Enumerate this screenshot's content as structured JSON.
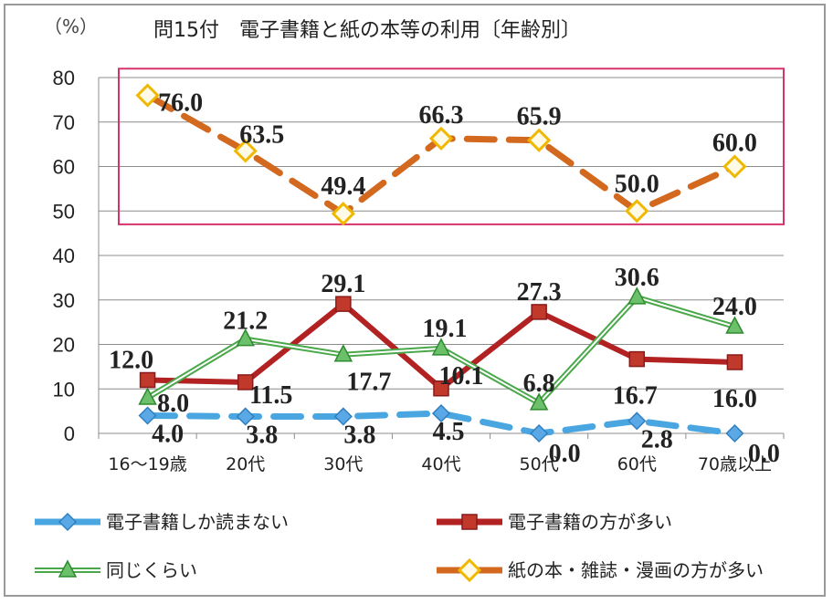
{
  "chart_data": {
    "type": "line",
    "title": "問15付　電子書籍と紙の本等の利用〔年齢別〕",
    "unit_label": "（%）",
    "categories": [
      "16〜19歳",
      "20代",
      "30代",
      "40代",
      "50代",
      "60代",
      "70歳以上"
    ],
    "ylim": [
      0,
      80
    ],
    "yticks": [
      "0",
      "10",
      "20",
      "30",
      "40",
      "50",
      "60",
      "70",
      "80"
    ],
    "grid": true,
    "legend_position": "bottom",
    "series": [
      {
        "name": "電子書籍しか読まない",
        "values": [
          4.0,
          3.8,
          3.8,
          4.5,
          0.0,
          2.8,
          0.0
        ],
        "labels": [
          "4.0",
          "3.8",
          "3.8",
          "4.5",
          "0.0",
          "2.8",
          "0.0"
        ],
        "color": "#4aa6e0",
        "marker": "diamond-blue",
        "line_style": "dashed"
      },
      {
        "name": "電子書籍の方が多い",
        "values": [
          12.0,
          11.5,
          29.1,
          10.1,
          27.3,
          16.7,
          16.0
        ],
        "labels": [
          "12.0",
          "11.5",
          "29.1",
          "10.1",
          "27.3",
          "16.7",
          "16.0"
        ],
        "color": "#b22222",
        "marker": "square-red",
        "line_style": "solid"
      },
      {
        "name": "同じくらい",
        "values": [
          8.0,
          21.2,
          17.7,
          19.1,
          6.8,
          30.6,
          24.0
        ],
        "labels": [
          "8.0",
          "21.2",
          "17.7",
          "19.1",
          "6.8",
          "30.6",
          "24.0"
        ],
        "color": "#4aa84a",
        "marker": "triangle-green",
        "line_style": "double"
      },
      {
        "name": "紙の本・雑誌・漫画の方が多い",
        "values": [
          76.0,
          63.5,
          49.4,
          66.3,
          65.9,
          50.0,
          60.0
        ],
        "labels": [
          "76.0",
          "63.5",
          "49.4",
          "66.3",
          "65.9",
          "50.0",
          "60.0"
        ],
        "color": "#d2691e",
        "marker": "diamond-yellow",
        "line_style": "dashed"
      }
    ],
    "highlight_box_series": "紙の本・雑誌・漫画の方が多い",
    "highlight_box_color": "#d6336c"
  }
}
